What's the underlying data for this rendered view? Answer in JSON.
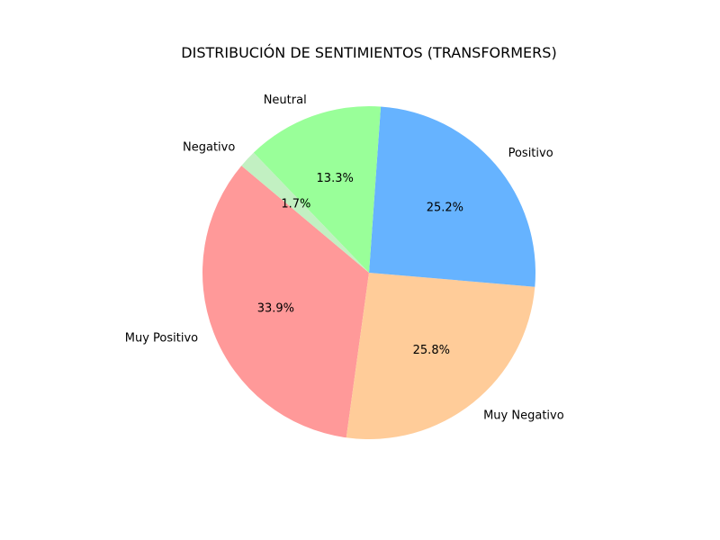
{
  "chart_data": {
    "type": "pie",
    "title": "DISTRIBUCIÓN DE SENTIMIENTOS (TRANSFORMERS)",
    "start_angle_deg": 140,
    "direction": "counterclockwise",
    "slices": [
      {
        "label": "Muy Positivo",
        "value": 33.9,
        "pct_label": "33.9%",
        "color": "#ff9999"
      },
      {
        "label": "Muy Negativo",
        "value": 25.8,
        "pct_label": "25.8%",
        "color": "#ffcc99"
      },
      {
        "label": "Positivo",
        "value": 25.2,
        "pct_label": "25.2%",
        "color": "#66b3ff"
      },
      {
        "label": "Neutral",
        "value": 13.3,
        "pct_label": "13.3%",
        "color": "#99ff99"
      },
      {
        "label": "Negativo",
        "value": 1.7,
        "pct_label": "1.7%",
        "color": "#c2f0c2"
      }
    ]
  }
}
